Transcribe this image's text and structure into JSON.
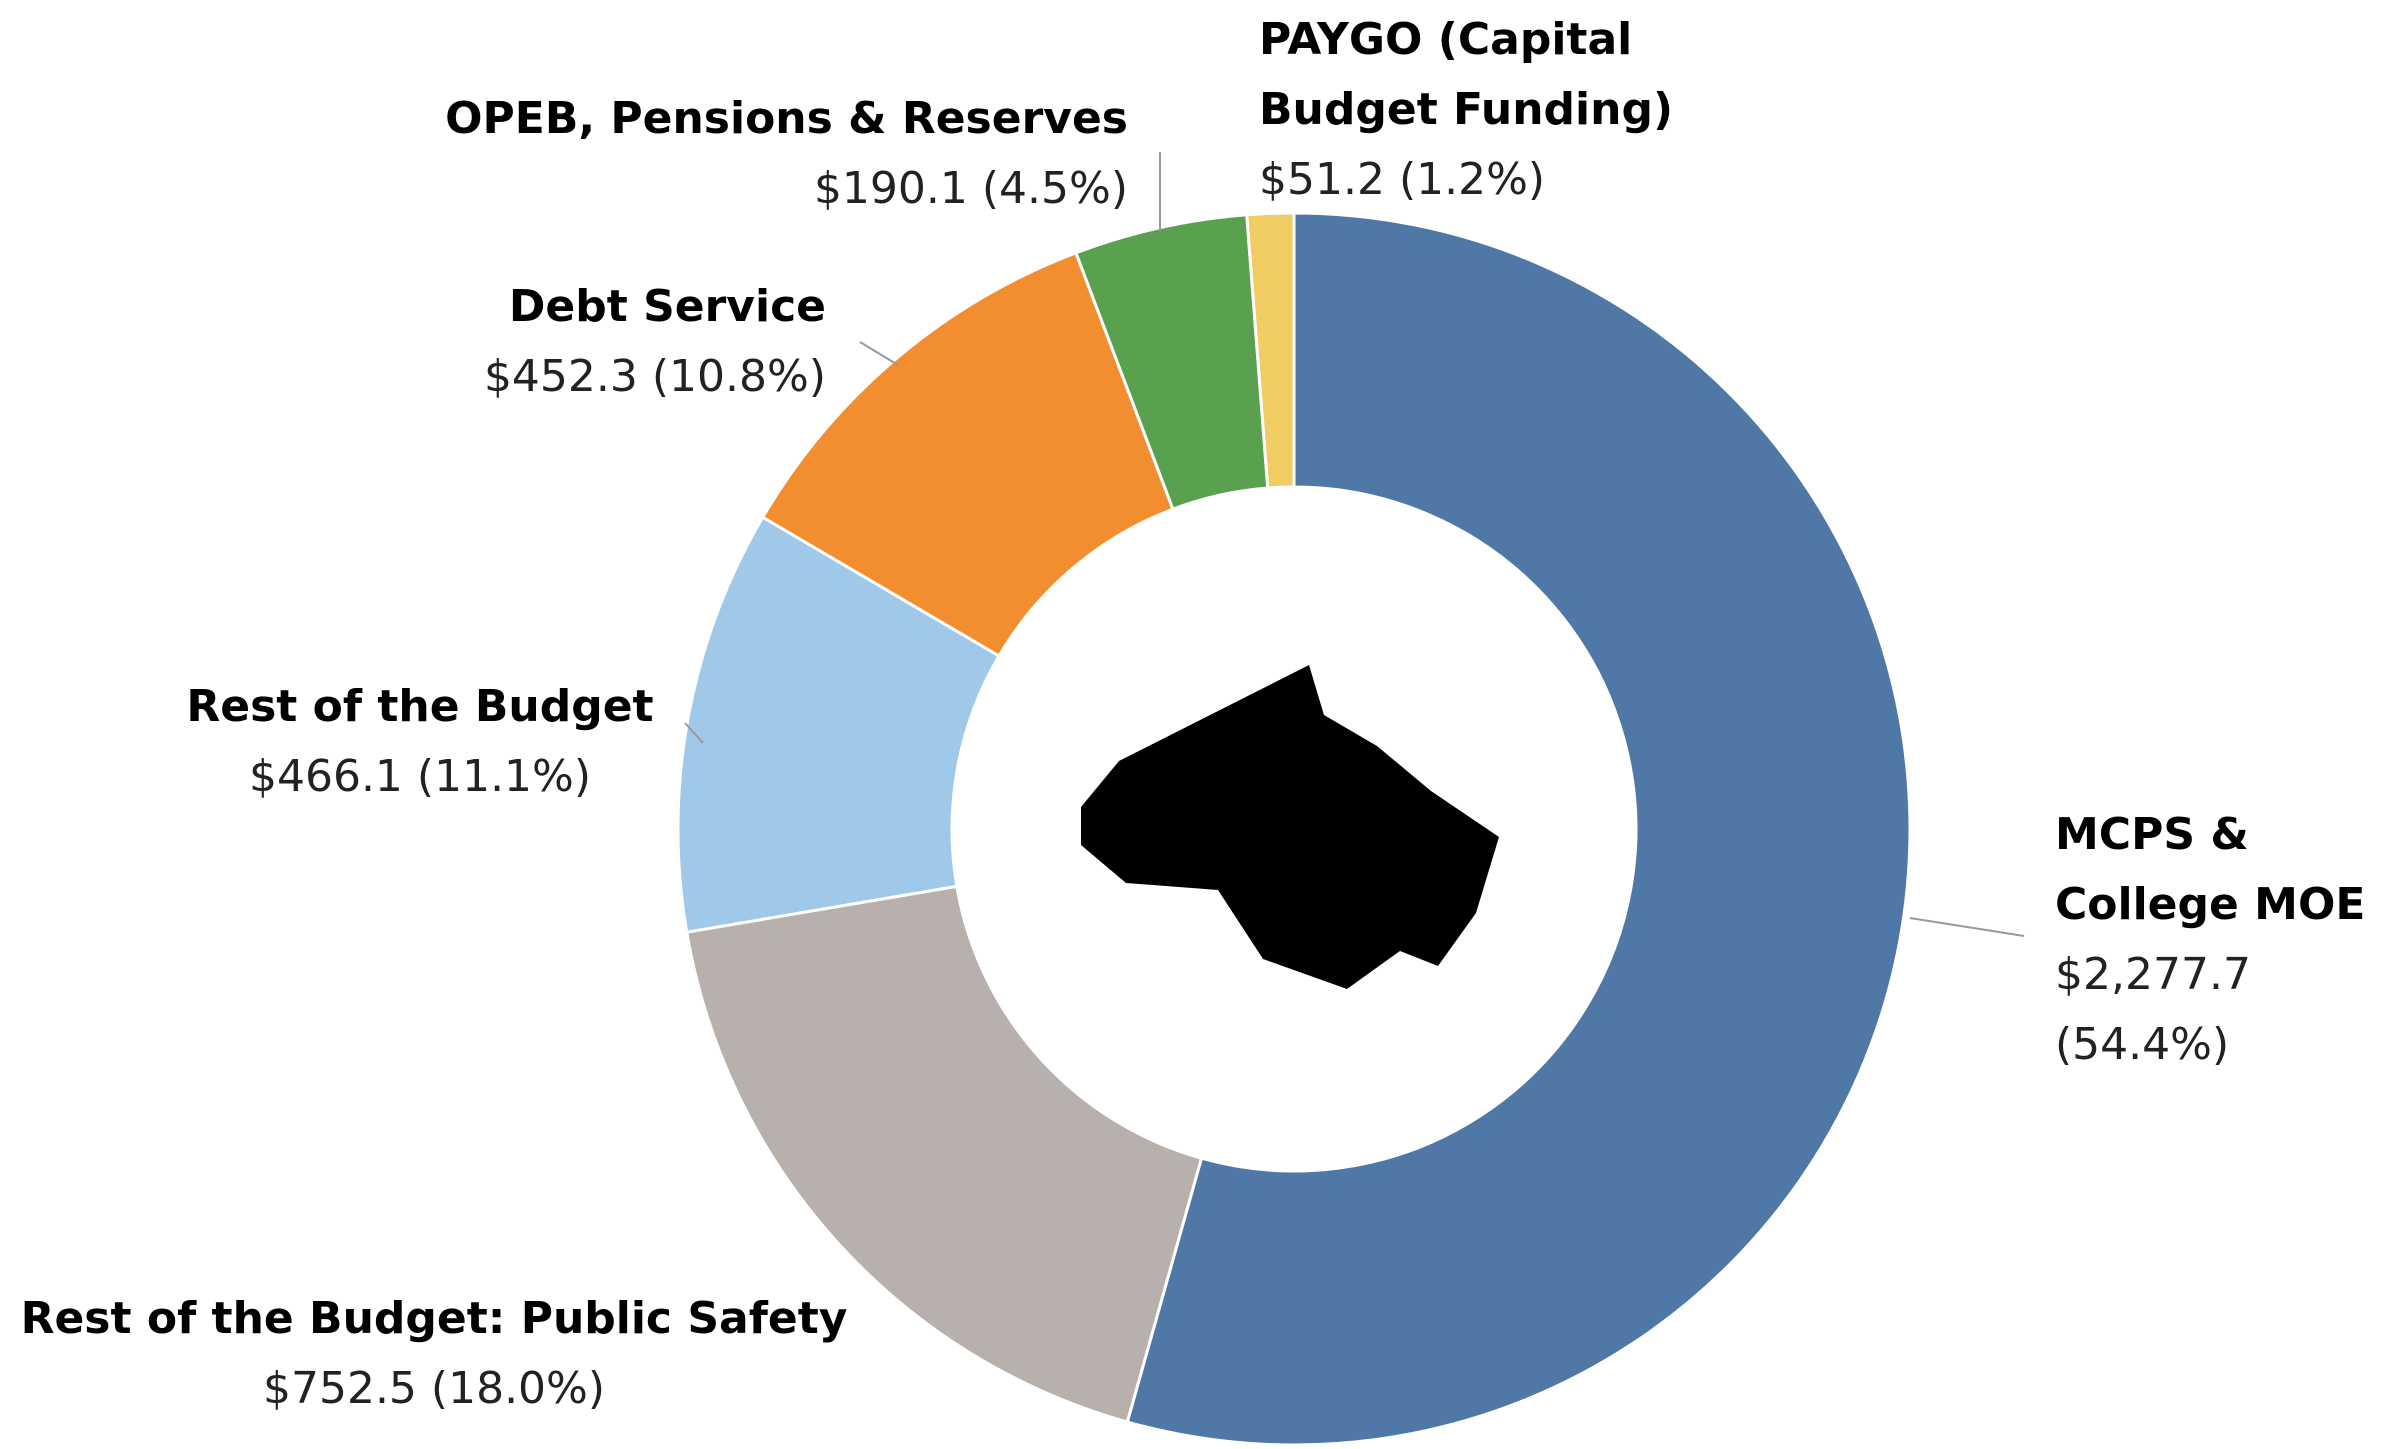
{
  "chart_data": {
    "type": "donut",
    "categories": [
      "MCPS & College MOE",
      "Rest of the Budget: Public Safety",
      "Rest of the Budget",
      "Debt Service",
      "OPEB, Pensions & Reserves",
      "PAYGO (Capital Budget Funding)"
    ],
    "values": [
      2277.7,
      752.5,
      466.1,
      452.3,
      190.1,
      51.2
    ],
    "value_labels": [
      "$2,277.7 (54.4%)",
      "$752.5 (18.0%)",
      "$466.1 (11.1%)",
      "$452.3 (10.8%)",
      "$190.1 (4.5%)",
      "$51.2 (1.2%)"
    ],
    "colors": [
      "#4f78a6",
      "#b8b0ac",
      "#a0c8e8",
      "#f28e2f",
      "#5aa14f",
      "#f0cd62"
    ]
  }
}
